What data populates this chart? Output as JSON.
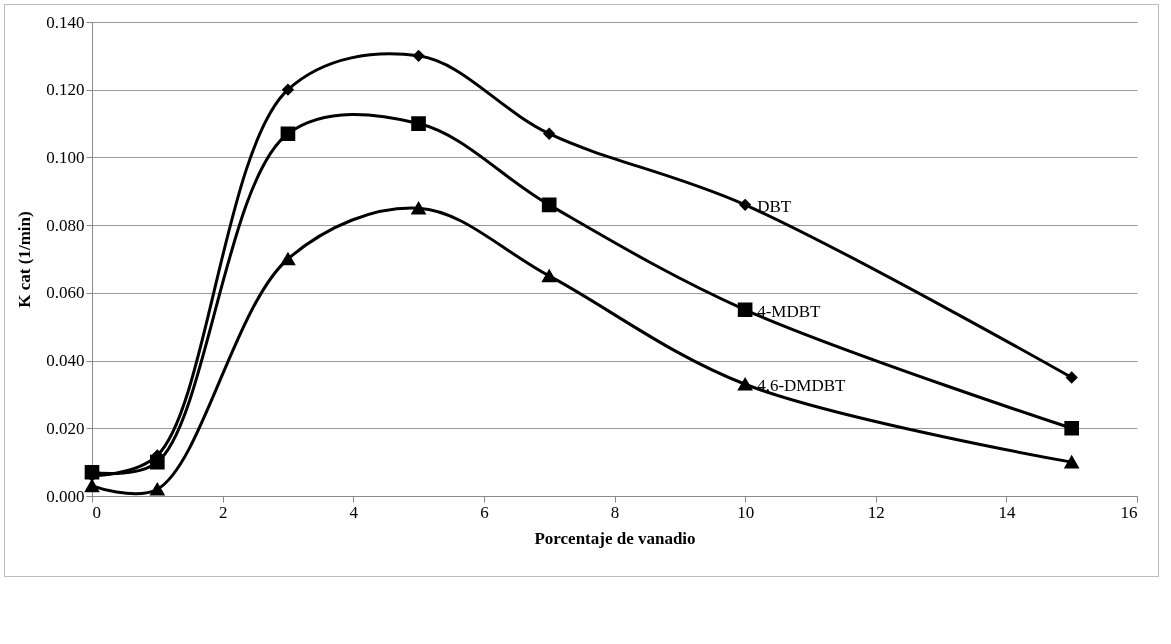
{
  "chart_data": {
    "type": "line",
    "xlabel": "Porcentaje de vanadio",
    "ylabel": "K cat (1/min)",
    "x": [
      0,
      1,
      3,
      5,
      7,
      10,
      15
    ],
    "series": [
      {
        "name": "DBT",
        "color": "#000000",
        "marker": "diamond",
        "values": [
          0.006,
          0.012,
          0.12,
          0.13,
          0.107,
          0.086,
          0.035
        ]
      },
      {
        "name": "4-MDBT",
        "color": "#000000",
        "marker": "square",
        "values": [
          0.007,
          0.01,
          0.107,
          0.11,
          0.086,
          0.055,
          0.02
        ]
      },
      {
        "name": "4,6-DMDBT",
        "color": "#000000",
        "marker": "triangle",
        "values": [
          0.003,
          0.002,
          0.07,
          0.085,
          0.065,
          0.033,
          0.01
        ]
      }
    ],
    "xlim": [
      0,
      16
    ],
    "xticks": [
      0,
      2,
      4,
      6,
      8,
      10,
      12,
      14,
      16
    ],
    "ylim": [
      0,
      0.14
    ],
    "yticks": [
      {
        "value": 0,
        "label": "0.000"
      },
      {
        "value": 0.02,
        "label": "0.020"
      },
      {
        "value": 0.04,
        "label": "0.040"
      },
      {
        "value": 0.06,
        "label": "0.060"
      },
      {
        "value": 0.08,
        "label": "0.080"
      },
      {
        "value": 0.1,
        "label": "0.100"
      },
      {
        "value": 0.12,
        "label": "0.120"
      },
      {
        "value": 0.14,
        "label": "0.140"
      }
    ],
    "grid": "y",
    "line_style": "solid"
  }
}
